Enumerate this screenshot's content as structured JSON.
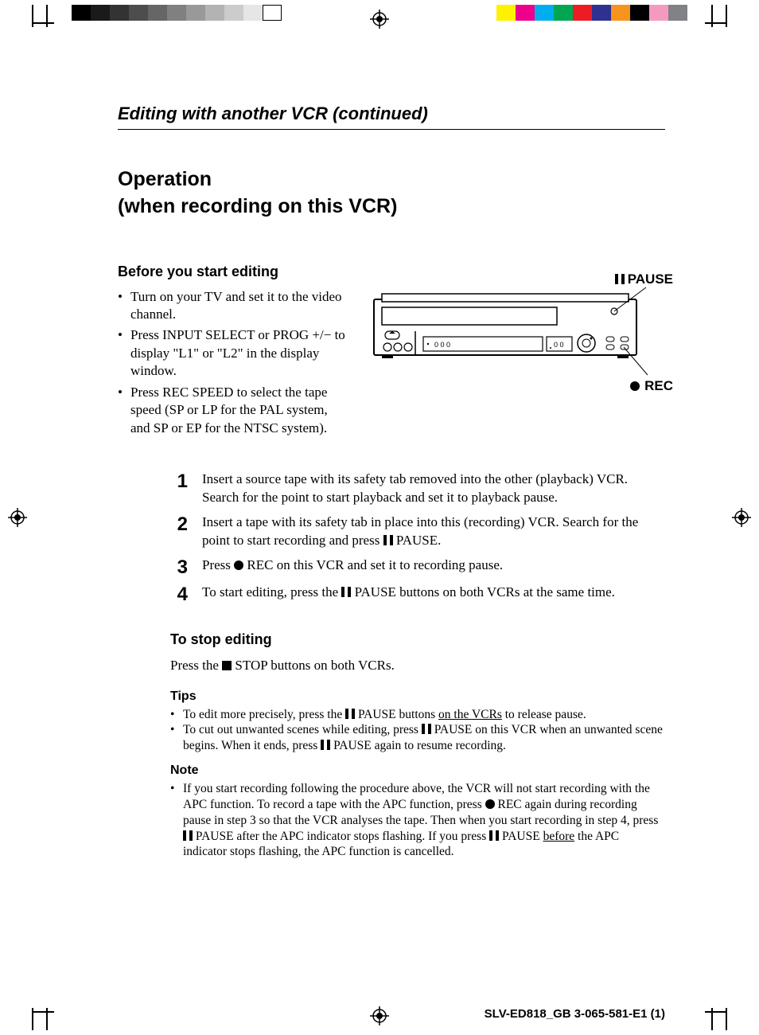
{
  "reg_gray_swatches": [
    "#000000",
    "#1a1a1a",
    "#333333",
    "#4d4d4d",
    "#666666",
    "#808080",
    "#999999",
    "#b3b3b3",
    "#cccccc",
    "#e6e6e6",
    "#ffffff"
  ],
  "reg_cmyk_swatches": [
    "#fff200",
    "#ec008c",
    "#00aeef",
    "#00a651",
    "#ed1c24",
    "#2e3192",
    "#f7941d",
    "#000000",
    "#f49ac1",
    "#808285"
  ],
  "section_title": "Editing with another VCR (continued)",
  "operation_title_line1": "Operation",
  "operation_title_line2": "(when recording on this VCR)",
  "before": {
    "heading": "Before you start editing",
    "items": [
      "Turn on your TV and set it to the video channel.",
      "Press INPUT SELECT or PROG +/− to display \"L1\" or \"L2\" in the display window.",
      "Press REC SPEED to select the tape speed (SP or LP for the PAL system, and SP or EP for the NTSC system)."
    ]
  },
  "vcr_labels": {
    "pause": "PAUSE",
    "rec": "REC"
  },
  "steps": [
    {
      "n": "1",
      "text_parts": [
        [
          "Insert a source tape with its safety tab removed into the other (playback) VCR. Search for the point to start playback and set it to playback pause."
        ]
      ]
    },
    {
      "n": "2",
      "text_parts": [
        [
          "Insert a tape with its safety tab in place into this (recording) VCR. Search for the point to start recording and press "
        ],
        [
          "pause"
        ],
        [
          " PAUSE."
        ]
      ]
    },
    {
      "n": "3",
      "text_parts": [
        [
          "Press "
        ],
        [
          "rec"
        ],
        [
          " REC on this VCR and set it to recording pause."
        ]
      ]
    },
    {
      "n": "4",
      "text_parts": [
        [
          "To start editing, press the "
        ],
        [
          "pause"
        ],
        [
          " PAUSE buttons on both VCRs at the same time."
        ]
      ]
    }
  ],
  "stop": {
    "heading": "To stop editing",
    "body_pre": "Press the ",
    "body_post": " STOP buttons on both VCRs."
  },
  "tips": {
    "heading": "Tips",
    "items": [
      {
        "pre": "To edit more precisely, press the ",
        "glyph": "pause",
        "mid": " PAUSE buttons ",
        "ul": "on the VCRs",
        "post": " to release pause."
      },
      {
        "pre": "To cut out unwanted scenes while editing, press ",
        "glyph": "pause",
        "mid": " PAUSE on this VCR when an unwanted scene begins.  When it ends, press ",
        "glyph2": "pause",
        "post": " PAUSE again to resume recording."
      }
    ]
  },
  "note": {
    "heading": "Note",
    "pre": "If you start recording following the procedure above, the VCR will not start recording with the APC function. To record a tape with the APC function, press ",
    "glyph1": "rec",
    "mid1": " REC again during recording pause in step 3 so that the VCR analyses the tape. Then when you start recording in step 4, press ",
    "glyph2": "pause",
    "mid2": " PAUSE after the APC indicator stops flashing.  If you press ",
    "glyph3": "pause",
    "mid3": " PAUSE ",
    "ul": "before",
    "post": " the APC indicator stops flashing, the APC function is cancelled."
  },
  "footer": "SLV-ED818_GB  3-065-581-E1 (1)"
}
